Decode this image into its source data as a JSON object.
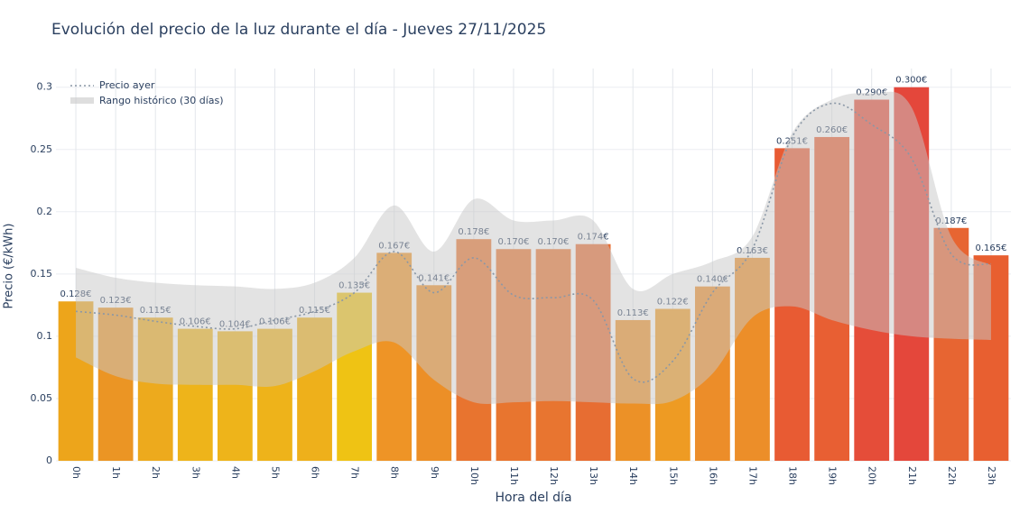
{
  "chart_data": {
    "type": "bar",
    "title": "Evolución del precio de la luz durante el día - Jueves 27/11/2025",
    "x_label": "Hora del día",
    "y_label": "Precio (€/kWh)",
    "categories": [
      "0h",
      "1h",
      "2h",
      "3h",
      "4h",
      "5h",
      "6h",
      "7h",
      "8h",
      "9h",
      "10h",
      "11h",
      "12h",
      "13h",
      "14h",
      "15h",
      "16h",
      "17h",
      "18h",
      "19h",
      "20h",
      "21h",
      "22h",
      "23h"
    ],
    "values": [
      0.128,
      0.123,
      0.115,
      0.106,
      0.104,
      0.106,
      0.115,
      0.135,
      0.167,
      0.141,
      0.178,
      0.17,
      0.17,
      0.174,
      0.113,
      0.122,
      0.14,
      0.163,
      0.251,
      0.26,
      0.29,
      0.3,
      0.187,
      0.165
    ],
    "value_labels": [
      "0.128€",
      "0.123€",
      "0.115€",
      "0.106€",
      "0.104€",
      "0.106€",
      "0.115€",
      "0.135€",
      "0.167€",
      "0.141€",
      "0.178€",
      "0.170€",
      "0.170€",
      "0.174€",
      "0.113€",
      "0.122€",
      "0.140€",
      "0.163€",
      "0.251€",
      "0.260€",
      "0.290€",
      "0.300€",
      "0.187€",
      "0.165€"
    ],
    "colors": [
      "#eda51b",
      "#eb9524",
      "#edaa1d",
      "#eeb41a",
      "#eeb41a",
      "#eeb31a",
      "#eeb01b",
      "#efc314",
      "#ee9426",
      "#ec8f27",
      "#e8742f",
      "#e8752f",
      "#e87530",
      "#e76d32",
      "#ec9127",
      "#ee9b23",
      "#ec8d29",
      "#ec8e29",
      "#e85b33",
      "#e85f33",
      "#e54d39",
      "#e4473b",
      "#e76532",
      "#e85f30"
    ],
    "line": {
      "name": "Precio ayer",
      "color": "#8a97a6",
      "values": [
        0.12,
        0.117,
        0.112,
        0.108,
        0.106,
        0.113,
        0.12,
        0.135,
        0.168,
        0.135,
        0.163,
        0.133,
        0.131,
        0.129,
        0.066,
        0.08,
        0.135,
        0.17,
        0.26,
        0.287,
        0.27,
        0.243,
        0.166,
        0.158
      ]
    },
    "range": {
      "name": "Rango histórico (30 días)",
      "color": "#c8c8c8",
      "upper": [
        0.155,
        0.147,
        0.143,
        0.141,
        0.14,
        0.138,
        0.143,
        0.163,
        0.205,
        0.168,
        0.21,
        0.193,
        0.193,
        0.193,
        0.138,
        0.15,
        0.16,
        0.18,
        0.263,
        0.29,
        0.295,
        0.284,
        0.18,
        0.157
      ],
      "lower": [
        0.083,
        0.068,
        0.062,
        0.061,
        0.061,
        0.06,
        0.072,
        0.088,
        0.095,
        0.065,
        0.047,
        0.047,
        0.048,
        0.047,
        0.046,
        0.048,
        0.07,
        0.115,
        0.124,
        0.113,
        0.105,
        0.1,
        0.098,
        0.097
      ]
    },
    "ylim": [
      0,
      0.315
    ],
    "yticks": [
      0,
      0.05,
      0.1,
      0.15,
      0.2,
      0.25,
      0.3
    ],
    "grid": true
  }
}
